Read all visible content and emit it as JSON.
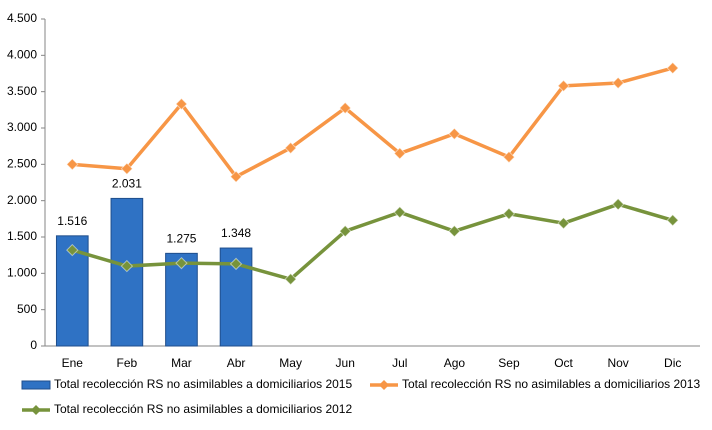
{
  "chart_data": {
    "type": "combo",
    "categories": [
      "Ene",
      "Feb",
      "Mar",
      "Abr",
      "May",
      "Jun",
      "Jul",
      "Ago",
      "Sep",
      "Oct",
      "Nov",
      "Dic"
    ],
    "series": [
      {
        "name": "Total recolección RS no asimilables a domiciliarios 2015",
        "type": "bar",
        "color": "#2f72c4",
        "values": [
          1516,
          2031,
          1275,
          1348,
          null,
          null,
          null,
          null,
          null,
          null,
          null,
          null
        ],
        "value_labels": [
          "1.516",
          "2.031",
          "1.275",
          "1.348",
          null,
          null,
          null,
          null,
          null,
          null,
          null,
          null
        ]
      },
      {
        "name": "Total recolección RS no asimilables a domiciliarios 2013",
        "type": "line",
        "color": "#f79646",
        "values": [
          2500,
          2440,
          3330,
          2330,
          2725,
          3275,
          2650,
          2920,
          2600,
          3580,
          3620,
          3825
        ]
      },
      {
        "name": "Total recolección RS no asimilables a domiciliarios 2012",
        "type": "line",
        "color": "#77933c",
        "values": [
          1320,
          1100,
          1140,
          1130,
          920,
          1580,
          1840,
          1580,
          1820,
          1690,
          1950,
          1730
        ]
      }
    ],
    "ylim": [
      0,
      4500
    ],
    "yticks": [
      0,
      500,
      {
        "value": 1000,
        "label": "1.000"
      },
      {
        "value": 1500,
        "label": "1.500"
      },
      {
        "value": 2000,
        "label": "2.000"
      },
      {
        "value": 2500,
        "label": "2.500"
      },
      {
        "value": 3000,
        "label": "3.000"
      },
      {
        "value": 3500,
        "label": "3.500"
      },
      {
        "value": 4000,
        "label": "4.000"
      },
      {
        "value": 4500,
        "label": "4.500"
      }
    ],
    "grid": false
  }
}
